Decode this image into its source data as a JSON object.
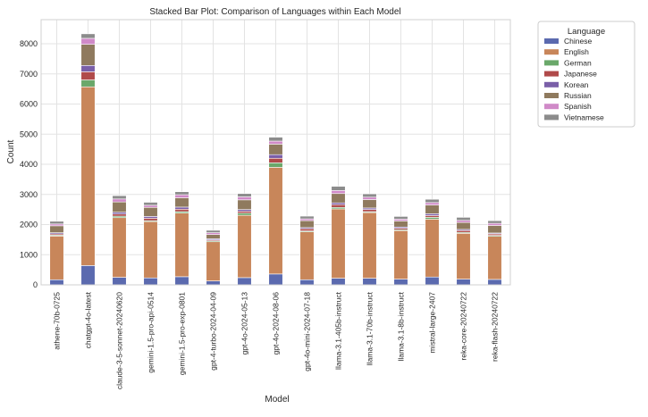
{
  "chart_data": {
    "type": "bar",
    "stacked": true,
    "title": "Stacked Bar Plot: Comparison of Languages within Each Model",
    "xlabel": "Model",
    "ylabel": "Count",
    "ylim": [
      0,
      8800
    ],
    "yticks": [
      0,
      1000,
      2000,
      3000,
      4000,
      5000,
      6000,
      7000,
      8000
    ],
    "grid": true,
    "legend": {
      "title": "Language",
      "placement": "outside-right"
    },
    "categories": [
      "athene-70b-0725",
      "chatgpt-4o-latest",
      "claude-3-5-sonnet-20240620",
      "gemini-1.5-pro-api-0514",
      "gemini-1.5-pro-exp-0801",
      "gpt-4-turbo-2024-04-09",
      "gpt-4o-2024-05-13",
      "gpt-4o-2024-08-06",
      "gpt-4o-mini-2024-07-18",
      "llama-3.1-405b-instruct",
      "llama-3.1-70b-instruct",
      "llama-3.1-8b-instruct",
      "mistral-large-2407",
      "reka-core-20240722",
      "reka-flash-20240722"
    ],
    "series": [
      {
        "name": "Chinese",
        "color": "#5b6aaf",
        "values": [
          170,
          640,
          250,
          230,
          270,
          130,
          240,
          360,
          170,
          220,
          220,
          190,
          260,
          190,
          180
        ]
      },
      {
        "name": "English",
        "color": "#c8865a",
        "values": [
          1450,
          5930,
          1980,
          1870,
          2110,
          1300,
          2070,
          3540,
          1590,
          2300,
          2180,
          1610,
          1920,
          1520,
          1430
        ]
      },
      {
        "name": "German",
        "color": "#6aa86a",
        "values": [
          30,
          230,
          50,
          30,
          50,
          30,
          70,
          150,
          30,
          50,
          30,
          30,
          60,
          30,
          30
        ]
      },
      {
        "name": "Japanese",
        "color": "#b04a4a",
        "values": [
          40,
          270,
          70,
          80,
          80,
          30,
          60,
          150,
          70,
          90,
          70,
          50,
          60,
          60,
          50
        ]
      },
      {
        "name": "Korean",
        "color": "#7a5fa8",
        "values": [
          40,
          210,
          60,
          60,
          70,
          40,
          60,
          120,
          40,
          60,
          50,
          40,
          60,
          40,
          30
        ]
      },
      {
        "name": "Russian",
        "color": "#8f7a5e",
        "values": [
          230,
          700,
          340,
          300,
          310,
          140,
          320,
          350,
          230,
          310,
          280,
          200,
          290,
          230,
          250
        ]
      },
      {
        "name": "Spanish",
        "color": "#d08ac8",
        "values": [
          60,
          200,
          100,
          70,
          100,
          60,
          100,
          100,
          60,
          100,
          80,
          60,
          80,
          70,
          70
        ]
      },
      {
        "name": "Vietnamese",
        "color": "#8c8c8c",
        "values": [
          90,
          150,
          110,
          100,
          100,
          80,
          110,
          130,
          90,
          140,
          110,
          90,
          110,
          100,
          90
        ]
      }
    ]
  }
}
